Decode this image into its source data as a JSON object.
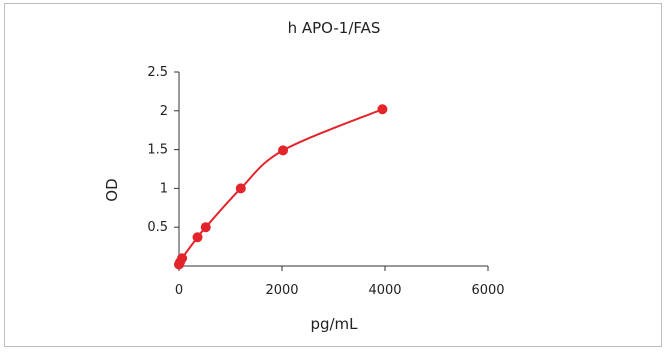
{
  "chart_data": {
    "type": "scatter",
    "title": "h APO-1/FAS",
    "xlabel": "pg/mL",
    "ylabel": "OD",
    "xlim": [
      0,
      6000
    ],
    "ylim": [
      0,
      2.5
    ],
    "x_ticks": [
      "0",
      "2000",
      "4000",
      "6000"
    ],
    "y_ticks": [
      "0.5",
      "1",
      "1.5",
      "2",
      "2.5"
    ],
    "grid": false,
    "legend": "none",
    "color": "#e3242b",
    "series": [
      {
        "points": [
          {
            "x": 0,
            "y": 0.02
          },
          {
            "x": 20,
            "y": 0.05
          },
          {
            "x": 60,
            "y": 0.1
          },
          {
            "x": 360,
            "y": 0.37
          },
          {
            "x": 520,
            "y": 0.5
          },
          {
            "x": 1200,
            "y": 1.0
          },
          {
            "x": 2020,
            "y": 1.49
          },
          {
            "x": 3950,
            "y": 2.02
          }
        ]
      }
    ]
  }
}
